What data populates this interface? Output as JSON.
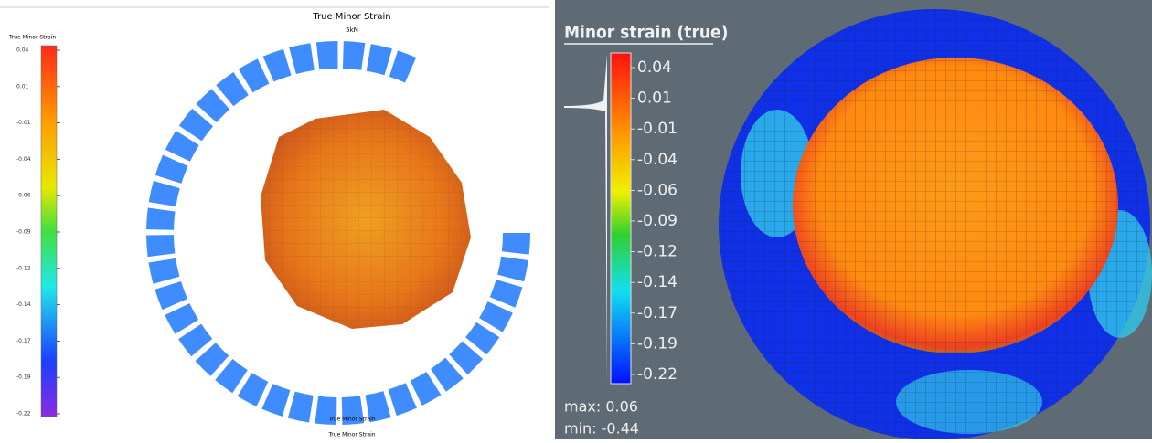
{
  "left": {
    "title": "True Minor Strain",
    "subtitle": "5kN",
    "colorbar": {
      "label": "True Minor Strain",
      "ticks": [
        "0.04",
        "0.01",
        "-0.01",
        "-0.04",
        "-0.06",
        "-0.09",
        "-0.12",
        "-0.14",
        "-0.17",
        "-0.19",
        "-0.22"
      ]
    },
    "footer": [
      "True Minor Strain",
      "True Minor Strain"
    ]
  },
  "right": {
    "title": "Minor strain (true)",
    "colorbar": {
      "ticks": [
        "0.04",
        "0.01",
        "-0.01",
        "-0.04",
        "-0.06",
        "-0.09",
        "-0.12",
        "-0.14",
        "-0.17",
        "-0.19",
        "-0.22"
      ]
    },
    "max": "max: 0.06",
    "min": "min: -0.44"
  }
}
